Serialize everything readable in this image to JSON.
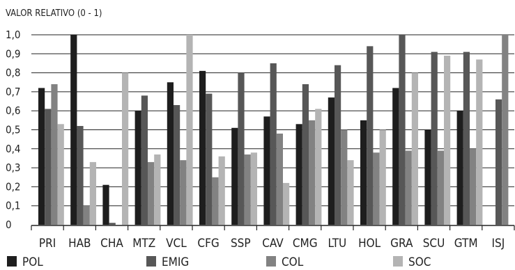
{
  "chart_data": {
    "type": "bar",
    "ylabel": "VALOR RELATIVO (0 - 1)",
    "ylim": [
      0,
      1.0
    ],
    "yticks": [
      "0",
      "0,1",
      "0,2",
      "0,3",
      "0,4",
      "0,5",
      "0,6",
      "0,7",
      "0,8",
      "0,9",
      "1,0"
    ],
    "grid": true,
    "legend": "bottom",
    "categories": [
      "PRI",
      "HAB",
      "CHA",
      "MTZ",
      "VCL",
      "CFG",
      "SSP",
      "CAV",
      "CMG",
      "LTU",
      "HOL",
      "GRA",
      "SCU",
      "GTM",
      "ISJ"
    ],
    "series": [
      {
        "name": "POL",
        "color": "#1e1e1e",
        "values": [
          0.72,
          1.0,
          0.21,
          0.6,
          0.75,
          0.81,
          0.51,
          0.57,
          0.53,
          0.67,
          0.55,
          0.72,
          0.5,
          0.6,
          0.0
        ]
      },
      {
        "name": "EMIG",
        "color": "#575757",
        "values": [
          0.61,
          0.52,
          0.01,
          0.68,
          0.63,
          0.69,
          0.8,
          0.85,
          0.74,
          0.84,
          0.94,
          1.0,
          0.91,
          0.91,
          0.66
        ]
      },
      {
        "name": "COL",
        "color": "#828282",
        "values": [
          0.74,
          0.1,
          0.0,
          0.33,
          0.34,
          0.25,
          0.37,
          0.48,
          0.55,
          0.5,
          0.38,
          0.39,
          0.39,
          0.4,
          1.0
        ]
      },
      {
        "name": "SOC",
        "color": "#b4b4b4",
        "values": [
          0.53,
          0.33,
          0.8,
          0.37,
          1.0,
          0.36,
          0.38,
          0.22,
          0.61,
          0.34,
          0.5,
          0.8,
          0.89,
          0.87,
          0.0
        ]
      }
    ]
  }
}
